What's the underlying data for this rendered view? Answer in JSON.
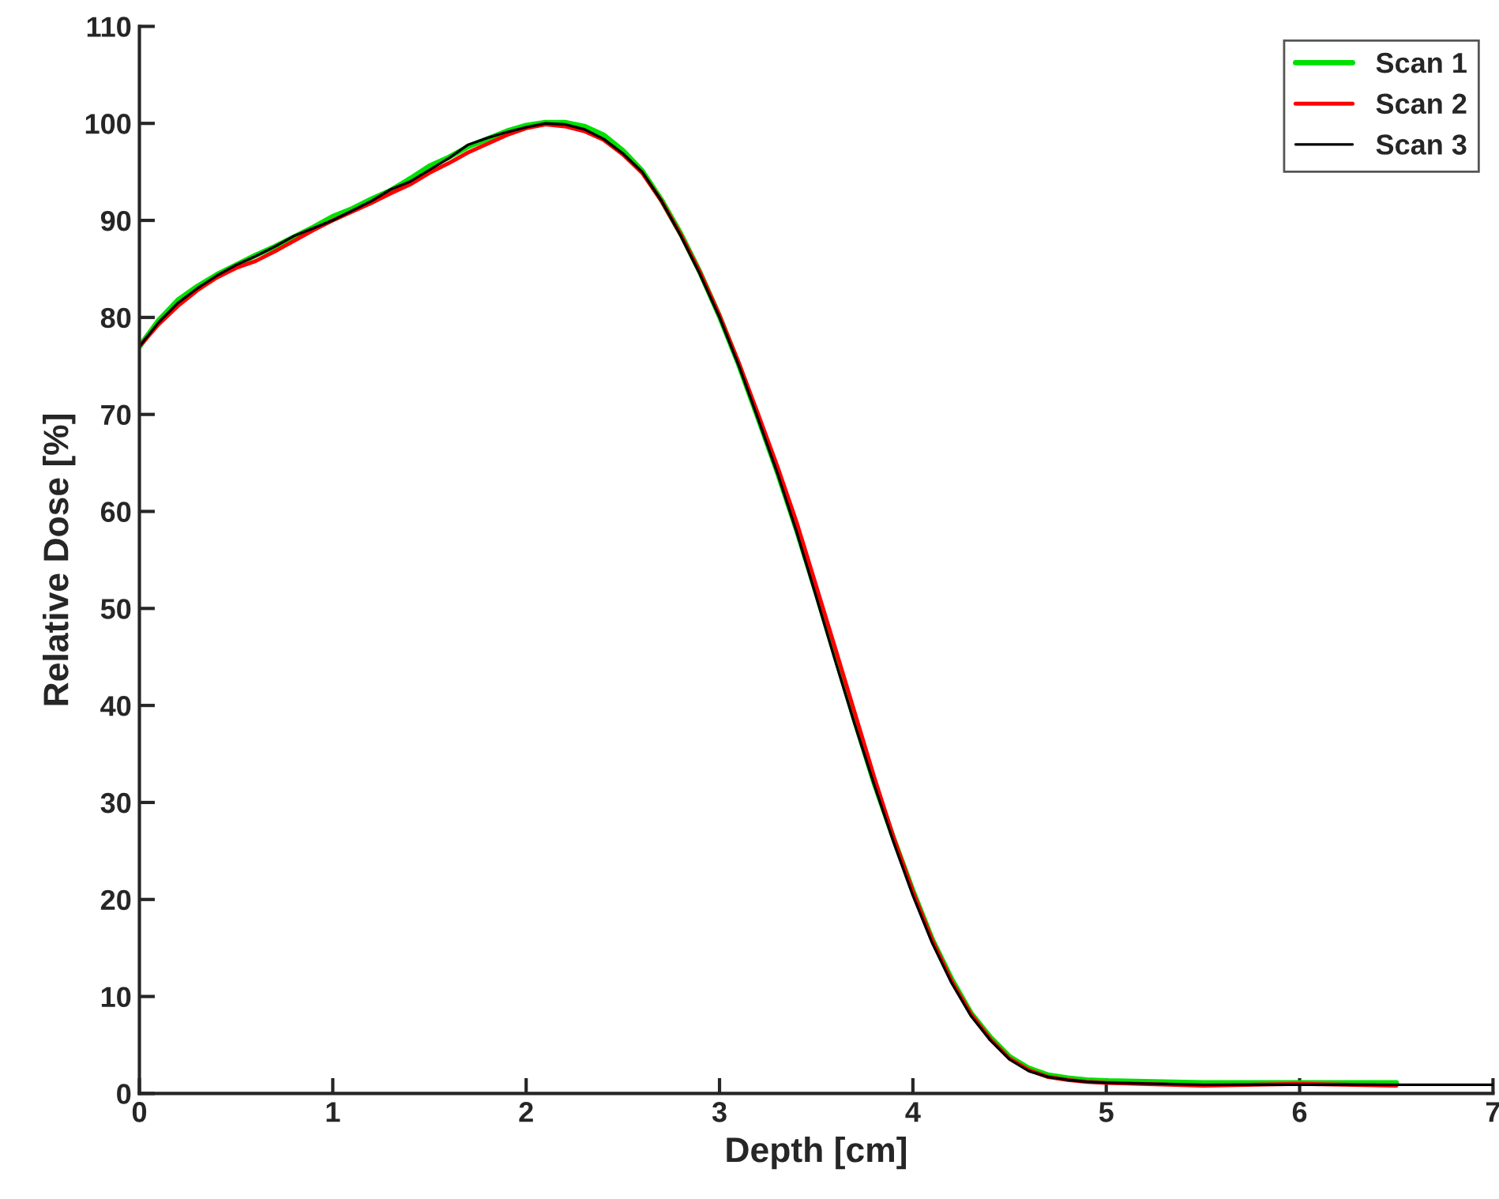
{
  "chart_data": {
    "type": "line",
    "xlabel": "Depth [cm]",
    "ylabel": "Relative Dose [%]",
    "xlim": [
      0,
      7
    ],
    "ylim": [
      0,
      110
    ],
    "xticks": [
      0,
      1,
      2,
      3,
      4,
      5,
      6,
      7
    ],
    "yticks": [
      0,
      10,
      20,
      30,
      40,
      50,
      60,
      70,
      80,
      90,
      100,
      110
    ],
    "grid": false,
    "legend": "top right",
    "line_style": "solid",
    "marker": "none",
    "x": [
      0,
      0.1,
      0.2,
      0.3,
      0.4,
      0.5,
      0.6,
      0.7,
      0.8,
      0.9,
      1.0,
      1.1,
      1.2,
      1.3,
      1.4,
      1.5,
      1.6,
      1.7,
      1.8,
      1.9,
      2.0,
      2.1,
      2.2,
      2.3,
      2.4,
      2.5,
      2.6,
      2.7,
      2.8,
      2.9,
      3.0,
      3.1,
      3.2,
      3.3,
      3.4,
      3.5,
      3.6,
      3.7,
      3.8,
      3.9,
      4.0,
      4.1,
      4.2,
      4.3,
      4.4,
      4.5,
      4.6,
      4.7,
      4.8,
      4.9,
      5.0,
      5.5,
      6.0,
      6.5,
      7.0
    ],
    "series": [
      {
        "name": "Scan 1",
        "color": "#00e000",
        "values": [
          77,
          79.7,
          81.8,
          83.2,
          84.4,
          85.4,
          86.4,
          87.3,
          88.3,
          89.3,
          90.4,
          91.2,
          92.2,
          93.1,
          94.3,
          95.6,
          96.5,
          97.6,
          98.4,
          99.2,
          99.8,
          100.1,
          100.1,
          99.7,
          98.8,
          97.2,
          95.1,
          92.1,
          88.6,
          84.6,
          80.1,
          75.1,
          69.6,
          64,
          58,
          51.6,
          45,
          38.4,
          32,
          26.3,
          20.9,
          15.9,
          11.8,
          8.3,
          5.8,
          3.8,
          2.6,
          1.9,
          1.6,
          1.4,
          1.3,
          1.1,
          1.1,
          1.1,
          null
        ]
      },
      {
        "name": "Scan 2",
        "color": "#ff0000",
        "values": [
          77,
          79.3,
          81.2,
          82.8,
          84.1,
          85.1,
          85.8,
          86.8,
          87.9,
          89,
          90,
          90.9,
          91.8,
          92.8,
          93.7,
          94.9,
          95.9,
          97,
          97.9,
          98.8,
          99.5,
          99.9,
          99.7,
          99.2,
          98.3,
          96.8,
          94.9,
          92,
          88.5,
          84.6,
          80.2,
          75.3,
          70,
          64.6,
          58.8,
          52.3,
          45.8,
          39.2,
          32.6,
          26.4,
          20.8,
          15.8,
          11.6,
          8.2,
          5.6,
          3.6,
          2.4,
          1.7,
          1.4,
          1.2,
          1.1,
          0.8,
          1.0,
          0.8,
          null
        ]
      },
      {
        "name": "Scan 3",
        "color": "#000000",
        "values": [
          77,
          79.5,
          81.5,
          83,
          84.3,
          85.4,
          86.3,
          87.3,
          88.4,
          89.2,
          90,
          91,
          92,
          93.2,
          94,
          95.2,
          96.4,
          97.8,
          98.5,
          99.1,
          99.6,
          100,
          99.9,
          99.4,
          98.4,
          96.9,
          95,
          92,
          88.4,
          84.4,
          80,
          75,
          69.5,
          63.9,
          57.8,
          51.2,
          44.5,
          38,
          31.8,
          25.9,
          20.4,
          15.5,
          11.4,
          8,
          5.5,
          3.5,
          2.3,
          1.7,
          1.4,
          1.2,
          1.1,
          0.9,
          0.9,
          0.9,
          0.9
        ]
      }
    ]
  }
}
